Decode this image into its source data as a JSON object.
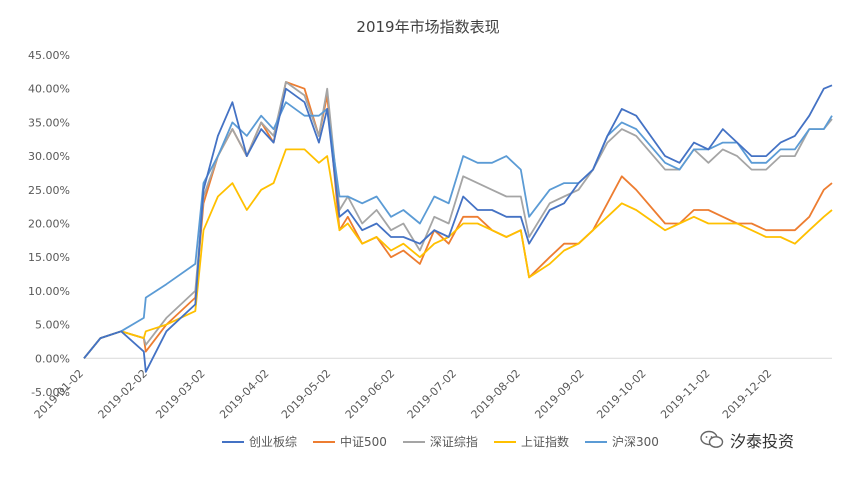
{
  "chart_data": {
    "type": "line",
    "title": "2019年市场指数表现",
    "xlabel": "",
    "ylabel": "",
    "ylim": [
      -0.05,
      0.45
    ],
    "ytick_labels": [
      "-5.00%",
      "0.00%",
      "5.00%",
      "10.00%",
      "15.00%",
      "20.00%",
      "25.00%",
      "30.00%",
      "35.00%",
      "40.00%",
      "45.00%"
    ],
    "xtick_labels": [
      "2019-01-02",
      "2019-02-02",
      "2019-03-02",
      "2019-04-02",
      "2019-05-02",
      "2019-06-02",
      "2019-07-02",
      "2019-08-02",
      "2019-09-02",
      "2019-10-02",
      "2019-11-02",
      "2019-12-02"
    ],
    "x": [
      "2019-01-02",
      "2019-01-10",
      "2019-01-20",
      "2019-01-31",
      "2019-02-01",
      "2019-02-11",
      "2019-02-25",
      "2019-03-01",
      "2019-03-08",
      "2019-03-15",
      "2019-03-22",
      "2019-03-29",
      "2019-04-04",
      "2019-04-10",
      "2019-04-19",
      "2019-04-26",
      "2019-04-30",
      "2019-05-06",
      "2019-05-10",
      "2019-05-17",
      "2019-05-24",
      "2019-05-31",
      "2019-06-06",
      "2019-06-14",
      "2019-06-21",
      "2019-06-28",
      "2019-07-05",
      "2019-07-12",
      "2019-07-19",
      "2019-07-26",
      "2019-08-02",
      "2019-08-06",
      "2019-08-16",
      "2019-08-23",
      "2019-08-30",
      "2019-09-06",
      "2019-09-13",
      "2019-09-20",
      "2019-09-27",
      "2019-10-11",
      "2019-10-18",
      "2019-10-25",
      "2019-11-01",
      "2019-11-08",
      "2019-11-15",
      "2019-11-22",
      "2019-11-29",
      "2019-12-06",
      "2019-12-13",
      "2019-12-20",
      "2019-12-27",
      "2019-12-31"
    ],
    "series": [
      {
        "name": "创业板综",
        "color": "#4472C4",
        "values": [
          0.0,
          0.03,
          0.04,
          0.01,
          -0.02,
          0.04,
          0.08,
          0.25,
          0.33,
          0.38,
          0.3,
          0.34,
          0.32,
          0.4,
          0.38,
          0.32,
          0.37,
          0.21,
          0.22,
          0.19,
          0.2,
          0.18,
          0.18,
          0.17,
          0.19,
          0.18,
          0.24,
          0.22,
          0.22,
          0.21,
          0.21,
          0.17,
          0.22,
          0.23,
          0.26,
          0.28,
          0.33,
          0.37,
          0.36,
          0.3,
          0.29,
          0.32,
          0.31,
          0.34,
          0.32,
          0.3,
          0.3,
          0.32,
          0.33,
          0.36,
          0.4,
          0.405
        ]
      },
      {
        "name": "中证500",
        "color": "#ED7D31",
        "values": [
          0.0,
          0.03,
          0.04,
          0.03,
          0.01,
          0.05,
          0.09,
          0.23,
          0.3,
          0.34,
          0.3,
          0.35,
          0.32,
          0.41,
          0.4,
          0.33,
          0.39,
          0.19,
          0.21,
          0.17,
          0.18,
          0.15,
          0.16,
          0.14,
          0.19,
          0.17,
          0.21,
          0.21,
          0.19,
          0.18,
          0.19,
          0.12,
          0.15,
          0.17,
          0.17,
          0.19,
          0.23,
          0.27,
          0.25,
          0.2,
          0.2,
          0.22,
          0.22,
          0.21,
          0.2,
          0.2,
          0.19,
          0.19,
          0.19,
          0.21,
          0.25,
          0.26
        ]
      },
      {
        "name": "深证综指",
        "color": "#A5A5A5",
        "values": [
          0.0,
          0.03,
          0.04,
          0.03,
          0.02,
          0.06,
          0.1,
          0.24,
          0.3,
          0.34,
          0.3,
          0.35,
          0.33,
          0.41,
          0.39,
          0.33,
          0.4,
          0.22,
          0.24,
          0.2,
          0.22,
          0.19,
          0.2,
          0.16,
          0.21,
          0.2,
          0.27,
          0.26,
          0.25,
          0.24,
          0.24,
          0.18,
          0.23,
          0.24,
          0.25,
          0.28,
          0.32,
          0.34,
          0.33,
          0.28,
          0.28,
          0.31,
          0.29,
          0.31,
          0.3,
          0.28,
          0.28,
          0.3,
          0.3,
          0.34,
          0.34,
          0.355
        ]
      },
      {
        "name": "上证指数",
        "color": "#FFC000",
        "values": [
          0.0,
          0.03,
          0.04,
          0.03,
          0.04,
          0.05,
          0.07,
          0.19,
          0.24,
          0.26,
          0.22,
          0.25,
          0.26,
          0.31,
          0.31,
          0.29,
          0.3,
          0.19,
          0.2,
          0.17,
          0.18,
          0.16,
          0.17,
          0.15,
          0.17,
          0.18,
          0.2,
          0.2,
          0.19,
          0.18,
          0.19,
          0.12,
          0.14,
          0.16,
          0.17,
          0.19,
          0.21,
          0.23,
          0.22,
          0.19,
          0.2,
          0.21,
          0.2,
          0.2,
          0.2,
          0.19,
          0.18,
          0.18,
          0.17,
          0.19,
          0.21,
          0.22
        ]
      },
      {
        "name": "沪深300",
        "color": "#5B9BD5",
        "values": [
          0.0,
          0.03,
          0.04,
          0.06,
          0.09,
          0.11,
          0.14,
          0.26,
          0.3,
          0.35,
          0.33,
          0.36,
          0.34,
          0.38,
          0.36,
          0.36,
          0.37,
          0.24,
          0.24,
          0.23,
          0.24,
          0.21,
          0.22,
          0.2,
          0.24,
          0.23,
          0.3,
          0.29,
          0.29,
          0.3,
          0.28,
          0.21,
          0.25,
          0.26,
          0.26,
          0.28,
          0.33,
          0.35,
          0.34,
          0.29,
          0.28,
          0.31,
          0.31,
          0.32,
          0.32,
          0.29,
          0.29,
          0.31,
          0.31,
          0.34,
          0.34,
          0.36
        ]
      }
    ],
    "grid": false,
    "legend_position": "bottom"
  },
  "watermark": {
    "text": "汐泰投资"
  }
}
